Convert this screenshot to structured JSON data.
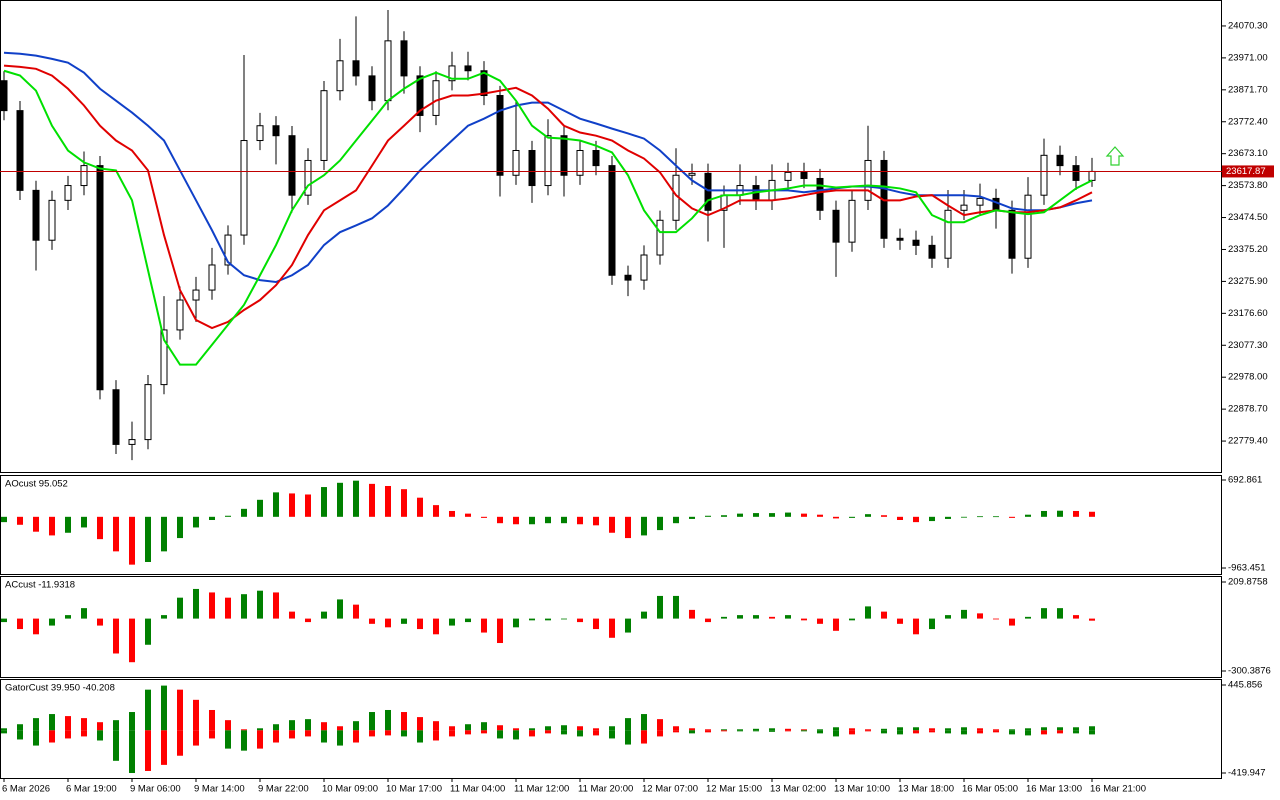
{
  "chart_data": [
    {
      "type": "candlestick",
      "categories": [
        "6 Mar 2026",
        null,
        null,
        null,
        "6 Mar 19:00",
        null,
        null,
        null,
        "9 Mar 06:00",
        null,
        null,
        null,
        "9 Mar 14:00",
        null,
        null,
        null,
        "9 Mar 22:00",
        null,
        null,
        null,
        "10 Mar 09:00",
        null,
        null,
        null,
        "10 Mar 17:00",
        null,
        null,
        null,
        "11 Mar 04:00",
        null,
        null,
        null,
        "11 Mar 12:00",
        null,
        null,
        null,
        "11 Mar 20:00",
        null,
        null,
        null,
        "12 Mar 07:00",
        null,
        null,
        null,
        "12 Mar 15:00",
        null,
        null,
        null,
        "13 Mar 02:00",
        null,
        null,
        null,
        "13 Mar 10:00",
        null,
        null,
        null,
        "13 Mar 18:00",
        null,
        null,
        null,
        "16 Mar 05:00",
        null,
        null,
        null,
        "16 Mar 13:00",
        null,
        null,
        null,
        "16 Mar 21:00"
      ],
      "open": [
        23900,
        23807,
        23559,
        23404,
        23528,
        23574,
        23636,
        22939,
        22769,
        22784,
        22955,
        23125,
        23218,
        23249,
        23327,
        23420,
        23714,
        23760,
        23729,
        23544,
        23652,
        23869,
        23962,
        23915,
        23838,
        24024,
        23915,
        23792,
        23900,
        23946,
        23931,
        23854,
        23606,
        23683,
        23574,
        23729,
        23606,
        23683,
        23636,
        23295,
        23280,
        23358,
        23466,
        23606,
        23612,
        23497,
        23544,
        23574,
        23528,
        23590,
        23615,
        23596,
        23497,
        23398,
        23528,
        23652,
        23410,
        23404,
        23388,
        23348,
        23497,
        23513,
        23534,
        23497,
        23348,
        23544,
        23668,
        23636,
        23590
      ],
      "high": [
        23930,
        23837,
        23589,
        23558,
        23604,
        23680,
        23666,
        22969,
        22840,
        22985,
        23230,
        23260,
        23290,
        23380,
        23450,
        23980,
        23800,
        23790,
        23759,
        23690,
        23899,
        24030,
        24100,
        23945,
        24120,
        24054,
        23945,
        23930,
        23990,
        23990,
        23961,
        23884,
        23840,
        23713,
        23780,
        23759,
        23713,
        23713,
        23666,
        23325,
        23388,
        23496,
        23690,
        23642,
        23642,
        23574,
        23640,
        23604,
        23640,
        23645,
        23645,
        23626,
        23527,
        23558,
        23760,
        23682,
        23440,
        23434,
        23418,
        23560,
        23560,
        23580,
        23564,
        23527,
        23600,
        23720,
        23698,
        23666,
        23660
      ],
      "low": [
        23777,
        23529,
        23310,
        23374,
        23498,
        23544,
        22909,
        22739,
        22720,
        22754,
        22925,
        23095,
        23150,
        23219,
        23297,
        23390,
        23684,
        23640,
        23490,
        23514,
        23622,
        23839,
        23885,
        23808,
        23808,
        23860,
        23740,
        23762,
        23870,
        23901,
        23824,
        23540,
        23576,
        23520,
        23544,
        23540,
        23576,
        23606,
        23265,
        23230,
        23250,
        23328,
        23436,
        23576,
        23400,
        23380,
        23514,
        23498,
        23498,
        23560,
        23566,
        23467,
        23290,
        23368,
        23498,
        23380,
        23374,
        23358,
        23318,
        23318,
        23467,
        23483,
        23440,
        23300,
        23318,
        23514,
        23606,
        23560,
        23570
      ],
      "close": [
        23807,
        23559,
        23404,
        23528,
        23574,
        23636,
        22939,
        22769,
        22784,
        22955,
        23125,
        23218,
        23249,
        23327,
        23420,
        23714,
        23760,
        23729,
        23544,
        23652,
        23869,
        23962,
        23915,
        23838,
        24024,
        23915,
        23792,
        23900,
        23946,
        23931,
        23854,
        23606,
        23683,
        23574,
        23729,
        23606,
        23683,
        23636,
        23295,
        23280,
        23358,
        23466,
        23606,
        23612,
        23497,
        23544,
        23574,
        23528,
        23590,
        23615,
        23596,
        23497,
        23398,
        23528,
        23652,
        23410,
        23404,
        23388,
        23348,
        23497,
        23513,
        23534,
        23497,
        23348,
        23544,
        23668,
        23636,
        23590,
        23617.87
      ],
      "up_color": "#ffffff",
      "down_color": "#000000",
      "series": [
        {
          "color": "#1040c8",
          "values": [
            23987,
            23984,
            23978,
            23968,
            23956,
            23925,
            23875,
            23838,
            23801,
            23760,
            23714,
            23621,
            23528,
            23435,
            23336,
            23295,
            23280,
            23274,
            23295,
            23327,
            23389,
            23429,
            23450,
            23472,
            23512,
            23565,
            23621,
            23668,
            23714,
            23760,
            23782,
            23807,
            23823,
            23832,
            23832,
            23807,
            23782,
            23767,
            23751,
            23736,
            23720,
            23683,
            23636,
            23590,
            23559,
            23559,
            23559,
            23559,
            23559,
            23559,
            23553,
            23559,
            23565,
            23571,
            23571,
            23565,
            23553,
            23544,
            23544,
            23544,
            23544,
            23540,
            23522,
            23503,
            23497,
            23497,
            23506,
            23519,
            23528
          ]
        },
        {
          "color": "#e00000",
          "values": [
            23947,
            23943,
            23937,
            23916,
            23875,
            23823,
            23760,
            23714,
            23683,
            23621,
            23420,
            23249,
            23156,
            23131,
            23150,
            23187,
            23218,
            23264,
            23327,
            23420,
            23497,
            23528,
            23559,
            23636,
            23714,
            23760,
            23807,
            23838,
            23854,
            23854,
            23860,
            23869,
            23878,
            23854,
            23813,
            23760,
            23739,
            23729,
            23714,
            23683,
            23658,
            23615,
            23544,
            23503,
            23482,
            23503,
            23528,
            23528,
            23528,
            23534,
            23544,
            23553,
            23559,
            23559,
            23559,
            23528,
            23528,
            23540,
            23544,
            23512,
            23482,
            23491,
            23497,
            23491,
            23491,
            23497,
            23506,
            23528,
            23553
          ]
        },
        {
          "color": "#00e000",
          "values": [
            23931,
            23916,
            23869,
            23760,
            23683,
            23646,
            23627,
            23621,
            23528,
            23311,
            23094,
            23017,
            23017,
            23079,
            23141,
            23203,
            23295,
            23389,
            23497,
            23574,
            23606,
            23652,
            23714,
            23776,
            23838,
            23875,
            23906,
            23925,
            23906,
            23906,
            23925,
            23900,
            23838,
            23760,
            23723,
            23720,
            23714,
            23698,
            23677,
            23606,
            23497,
            23429,
            23429,
            23472,
            23528,
            23544,
            23544,
            23553,
            23559,
            23565,
            23574,
            23574,
            23568,
            23571,
            23574,
            23571,
            23565,
            23553,
            23482,
            23460,
            23460,
            23482,
            23497,
            23491,
            23485,
            23491,
            23528,
            23565,
            23590
          ]
        }
      ],
      "ylim": [
        22683.2,
        24147.9
      ],
      "yticks": [
        {
          "value": 24070.3,
          "label": "24070.30"
        },
        {
          "value": 23971,
          "label": "23971.00"
        },
        {
          "value": 23871.7,
          "label": "23871.70"
        },
        {
          "value": 23772.4,
          "label": "23772.40"
        },
        {
          "value": 23673.1,
          "label": "23673.10"
        },
        {
          "value": 23573.8,
          "label": "23573.80"
        },
        {
          "value": 23474.5,
          "label": "23474.50"
        },
        {
          "value": 23375.2,
          "label": "23375.20"
        },
        {
          "value": 23275.9,
          "label": "23275.90"
        },
        {
          "value": 23176.6,
          "label": "23176.60"
        },
        {
          "value": 23077.3,
          "label": "23077.30"
        },
        {
          "value": 22978,
          "label": "22978.00"
        },
        {
          "value": 22878.7,
          "label": "22878.70"
        },
        {
          "value": 22779.4,
          "label": "22779.40"
        }
      ],
      "price_line": 23617.87,
      "price_line_color": "#c00000"
    },
    {
      "type": "bar",
      "title": "AOcust 95.052",
      "up_color": "#008000",
      "down_color": "#ff0000",
      "series": [
        {
          "values": [
            -100,
            -150,
            -280,
            -350,
            -300,
            -200,
            -420,
            -650,
            -900,
            -850,
            -650,
            -400,
            -200,
            -60,
            20,
            150,
            320,
            460,
            440,
            420,
            560,
            640,
            680,
            620,
            580,
            520,
            360,
            220,
            110,
            60,
            -20,
            -120,
            -140,
            -140,
            -120,
            -120,
            -140,
            -160,
            -300,
            -400,
            -350,
            -250,
            -120,
            -40,
            20,
            30,
            60,
            70,
            70,
            80,
            60,
            40,
            -30,
            -20,
            50,
            30,
            -60,
            -100,
            -80,
            -40,
            0,
            10,
            10,
            -20,
            40,
            110,
            115,
            110,
            95.052
          ]
        }
      ],
      "ylim": [
        -1076,
        768
      ],
      "yticks": [
        692.861,
        -963.451
      ]
    },
    {
      "type": "bar",
      "title": "ACcust -11.9318",
      "up_color": "#008000",
      "down_color": "#ff0000",
      "series": [
        {
          "values": [
            -20,
            -60,
            -90,
            -40,
            20,
            60,
            -40,
            -200,
            -250,
            -150,
            20,
            120,
            170,
            150,
            120,
            140,
            160,
            150,
            40,
            -20,
            40,
            110,
            80,
            -30,
            -50,
            -30,
            -60,
            -90,
            -40,
            -20,
            -80,
            -140,
            -50,
            -10,
            -10,
            0,
            -20,
            -60,
            -110,
            -80,
            40,
            130,
            130,
            50,
            -20,
            10,
            20,
            20,
            10,
            20,
            -10,
            -30,
            -70,
            -10,
            70,
            40,
            -30,
            -90,
            -60,
            20,
            50,
            30,
            0,
            -40,
            10,
            60,
            60,
            20,
            -11.9318
          ]
        }
      ],
      "ylim": [
        -334.8,
        238.5
      ],
      "yticks": [
        209.8758,
        -300.3876
      ]
    },
    {
      "type": "gator",
      "title": "GatorCust 39.950 -40.208",
      "up_color": "#008000",
      "down_color": "#ff0000",
      "series": [
        {
          "values": [
            20,
            60,
            120,
            160,
            140,
            120,
            80,
            100,
            180,
            400,
            440,
            400,
            300,
            200,
            100,
            10,
            20,
            60,
            100,
            110,
            80,
            40,
            90,
            180,
            200,
            180,
            130,
            90,
            40,
            60,
            80,
            50,
            20,
            20,
            40,
            50,
            40,
            20,
            40,
            120,
            160,
            110,
            40,
            20,
            10,
            10,
            10,
            15,
            20,
            15,
            10,
            10,
            30,
            20,
            10,
            15,
            30,
            30,
            20,
            20,
            30,
            20,
            10,
            10,
            20,
            30,
            30,
            30,
            39.95
          ]
        },
        {
          "values": [
            -30,
            -90,
            -150,
            -120,
            -80,
            -60,
            -100,
            -300,
            -420,
            -400,
            -340,
            -250,
            -150,
            -80,
            -180,
            -200,
            -180,
            -120,
            -80,
            -60,
            -120,
            -150,
            -120,
            -60,
            -50,
            -60,
            -120,
            -100,
            -60,
            -40,
            -30,
            -80,
            -90,
            -60,
            -30,
            -40,
            -60,
            -50,
            -80,
            -140,
            -130,
            -60,
            -20,
            -30,
            -20,
            -10,
            -10,
            -10,
            -15,
            -10,
            -10,
            -30,
            -60,
            -40,
            -10,
            -30,
            -40,
            -30,
            -20,
            -30,
            -40,
            -30,
            -20,
            -40,
            -50,
            -40,
            -30,
            -30,
            -40.208
          ]
        }
      ],
      "ylim": [
        -469.1,
        495.05
      ],
      "yticks": [
        445.856,
        -419.947
      ]
    }
  ]
}
